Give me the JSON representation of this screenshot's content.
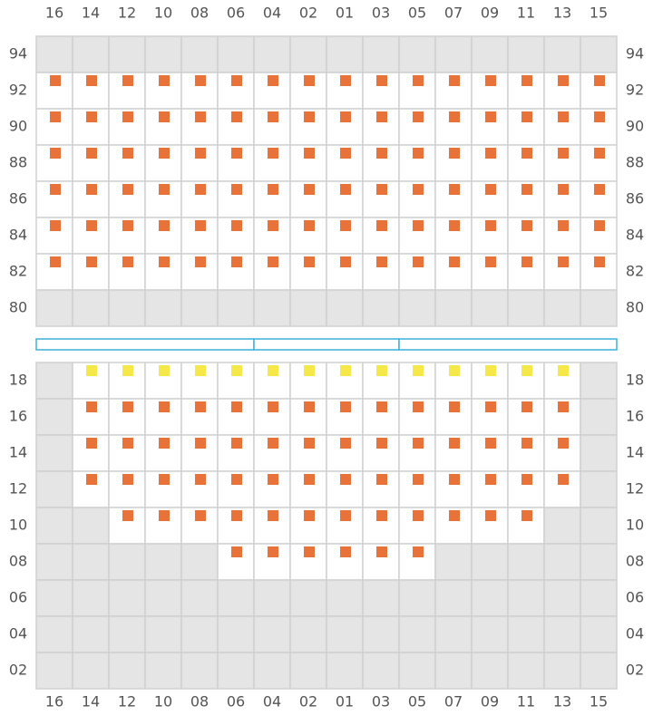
{
  "columns": [
    "16",
    "14",
    "12",
    "10",
    "08",
    "06",
    "04",
    "02",
    "01",
    "03",
    "05",
    "07",
    "09",
    "11",
    "13",
    "15"
  ],
  "colors": {
    "off": "#e5e5e5",
    "orange": "#e8733a",
    "yellow": "#f7e84a"
  },
  "top_block": {
    "rows": [
      {
        "label": "94",
        "cells": [
          "off",
          "off",
          "off",
          "off",
          "off",
          "off",
          "off",
          "off",
          "off",
          "off",
          "off",
          "off",
          "off",
          "off",
          "off",
          "off"
        ]
      },
      {
        "label": "92",
        "cells": [
          "orange",
          "orange",
          "orange",
          "orange",
          "orange",
          "orange",
          "orange",
          "orange",
          "orange",
          "orange",
          "orange",
          "orange",
          "orange",
          "orange",
          "orange",
          "orange"
        ]
      },
      {
        "label": "90",
        "cells": [
          "orange",
          "orange",
          "orange",
          "orange",
          "orange",
          "orange",
          "orange",
          "orange",
          "orange",
          "orange",
          "orange",
          "orange",
          "orange",
          "orange",
          "orange",
          "orange"
        ]
      },
      {
        "label": "88",
        "cells": [
          "orange",
          "orange",
          "orange",
          "orange",
          "orange",
          "orange",
          "orange",
          "orange",
          "orange",
          "orange",
          "orange",
          "orange",
          "orange",
          "orange",
          "orange",
          "orange"
        ]
      },
      {
        "label": "86",
        "cells": [
          "orange",
          "orange",
          "orange",
          "orange",
          "orange",
          "orange",
          "orange",
          "orange",
          "orange",
          "orange",
          "orange",
          "orange",
          "orange",
          "orange",
          "orange",
          "orange"
        ]
      },
      {
        "label": "84",
        "cells": [
          "orange",
          "orange",
          "orange",
          "orange",
          "orange",
          "orange",
          "orange",
          "orange",
          "orange",
          "orange",
          "orange",
          "orange",
          "orange",
          "orange",
          "orange",
          "orange"
        ]
      },
      {
        "label": "82",
        "cells": [
          "orange",
          "orange",
          "orange",
          "orange",
          "orange",
          "orange",
          "orange",
          "orange",
          "orange",
          "orange",
          "orange",
          "orange",
          "orange",
          "orange",
          "orange",
          "orange"
        ]
      },
      {
        "label": "80",
        "cells": [
          "off",
          "off",
          "off",
          "off",
          "off",
          "off",
          "off",
          "off",
          "off",
          "off",
          "off",
          "off",
          "off",
          "off",
          "off",
          "off"
        ]
      }
    ]
  },
  "bottom_block": {
    "rows": [
      {
        "label": "18",
        "cells": [
          "off",
          "yellow",
          "yellow",
          "yellow",
          "yellow",
          "yellow",
          "yellow",
          "yellow",
          "yellow",
          "yellow",
          "yellow",
          "yellow",
          "yellow",
          "yellow",
          "yellow",
          "off"
        ]
      },
      {
        "label": "16",
        "cells": [
          "off",
          "orange",
          "orange",
          "orange",
          "orange",
          "orange",
          "orange",
          "orange",
          "orange",
          "orange",
          "orange",
          "orange",
          "orange",
          "orange",
          "orange",
          "off"
        ]
      },
      {
        "label": "14",
        "cells": [
          "off",
          "orange",
          "orange",
          "orange",
          "orange",
          "orange",
          "orange",
          "orange",
          "orange",
          "orange",
          "orange",
          "orange",
          "orange",
          "orange",
          "orange",
          "off"
        ]
      },
      {
        "label": "12",
        "cells": [
          "off",
          "orange",
          "orange",
          "orange",
          "orange",
          "orange",
          "orange",
          "orange",
          "orange",
          "orange",
          "orange",
          "orange",
          "orange",
          "orange",
          "orange",
          "off"
        ]
      },
      {
        "label": "10",
        "cells": [
          "off",
          "off",
          "orange",
          "orange",
          "orange",
          "orange",
          "orange",
          "orange",
          "orange",
          "orange",
          "orange",
          "orange",
          "orange",
          "orange",
          "off",
          "off"
        ]
      },
      {
        "label": "08",
        "cells": [
          "off",
          "off",
          "off",
          "off",
          "off",
          "orange",
          "orange",
          "orange",
          "orange",
          "orange",
          "orange",
          "off",
          "off",
          "off",
          "off",
          "off"
        ]
      },
      {
        "label": "06",
        "cells": [
          "off",
          "off",
          "off",
          "off",
          "off",
          "off",
          "off",
          "off",
          "off",
          "off",
          "off",
          "off",
          "off",
          "off",
          "off",
          "off"
        ]
      },
      {
        "label": "04",
        "cells": [
          "off",
          "off",
          "off",
          "off",
          "off",
          "off",
          "off",
          "off",
          "off",
          "off",
          "off",
          "off",
          "off",
          "off",
          "off",
          "off"
        ]
      },
      {
        "label": "02",
        "cells": [
          "off",
          "off",
          "off",
          "off",
          "off",
          "off",
          "off",
          "off",
          "off",
          "off",
          "off",
          "off",
          "off",
          "off",
          "off",
          "off"
        ]
      }
    ]
  }
}
